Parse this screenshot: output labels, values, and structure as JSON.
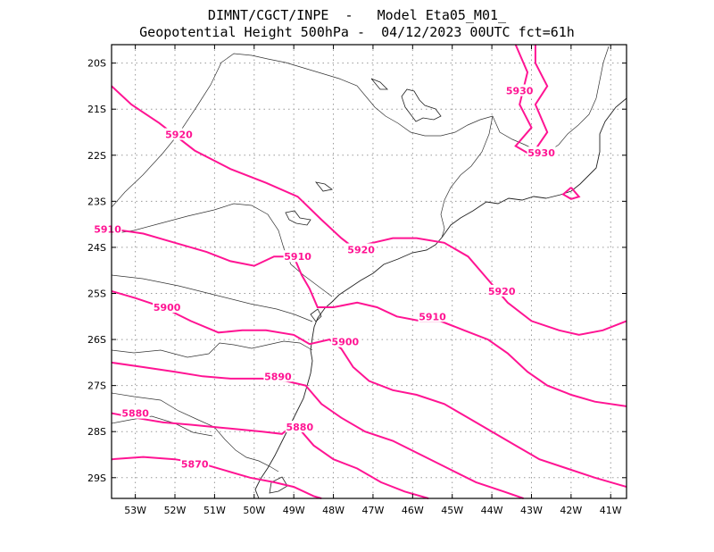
{
  "header": {
    "line1": "DIMNT/CGCT/INPE  -   Model Eta05_M01_",
    "line2": "Geopotential Height 500hPa -  04/12/2023 00UTC fct=61h"
  },
  "colors": {
    "contour": "#ff1493",
    "frame": "#000000",
    "grid": "#999999",
    "coast": "#222222"
  },
  "map": {
    "lon_range": [
      -53.6,
      -40.6
    ],
    "lat_range": [
      -29.45,
      -19.6
    ],
    "x_ticks": [
      "53W",
      "52W",
      "51W",
      "50W",
      "49W",
      "48W",
      "47W",
      "46W",
      "45W",
      "44W",
      "43W",
      "42W",
      "41W"
    ],
    "y_ticks": [
      "20S",
      "21S",
      "22S",
      "23S",
      "24S",
      "25S",
      "26S",
      "27S",
      "28S",
      "29S"
    ],
    "contours": [
      {
        "value": "5930",
        "points": [
          [
            -43.4,
            -19.6
          ],
          [
            -43.1,
            -20.2
          ],
          [
            -43.3,
            -20.9
          ],
          [
            -43.0,
            -21.4
          ],
          [
            -43.4,
            -21.8
          ],
          [
            -43.0,
            -22.0
          ],
          [
            -42.6,
            -21.5
          ],
          [
            -42.9,
            -20.9
          ],
          [
            -42.6,
            -20.5
          ],
          [
            -42.9,
            -20.0
          ],
          [
            -42.9,
            -19.6
          ]
        ],
        "label": [
          -43.3,
          -20.6
        ]
      },
      {
        "value": "5930",
        "points": [
          [
            -42.0,
            -22.7
          ],
          [
            -41.8,
            -22.9
          ],
          [
            -42.0,
            -22.95
          ],
          [
            -42.2,
            -22.85
          ],
          [
            -42.0,
            -22.7
          ]
        ],
        "label": null
      },
      {
        "value": "5930",
        "points": [],
        "label": [
          -42.75,
          -21.95
        ]
      },
      {
        "value": "5920",
        "points": [
          [
            -53.6,
            -20.5
          ],
          [
            -53.1,
            -20.9
          ],
          [
            -52.4,
            -21.3
          ],
          [
            -51.5,
            -21.9
          ],
          [
            -50.6,
            -22.3
          ],
          [
            -49.7,
            -22.6
          ],
          [
            -48.9,
            -22.9
          ],
          [
            -48.3,
            -23.4
          ],
          [
            -47.8,
            -23.8
          ],
          [
            -47.5,
            -24.0
          ],
          [
            -47.0,
            -23.9
          ],
          [
            -46.5,
            -23.8
          ],
          [
            -45.9,
            -23.8
          ],
          [
            -45.2,
            -23.9
          ],
          [
            -44.6,
            -24.2
          ],
          [
            -44.1,
            -24.7
          ],
          [
            -43.6,
            -25.2
          ],
          [
            -43.0,
            -25.6
          ],
          [
            -42.3,
            -25.8
          ],
          [
            -41.8,
            -25.9
          ],
          [
            -41.2,
            -25.8
          ],
          [
            -40.6,
            -25.6
          ]
        ],
        "label": [
          -51.9,
          -21.55
        ]
      },
      {
        "value": "5920",
        "points": [],
        "label": [
          -47.3,
          -24.05
        ]
      },
      {
        "value": "5920",
        "points": [],
        "label": [
          -43.75,
          -24.95
        ]
      },
      {
        "value": "5910",
        "points": [
          [
            -53.6,
            -23.6
          ],
          [
            -52.8,
            -23.7
          ],
          [
            -52.0,
            -23.9
          ],
          [
            -51.2,
            -24.1
          ],
          [
            -50.6,
            -24.3
          ],
          [
            -50.0,
            -24.4
          ],
          [
            -49.5,
            -24.2
          ],
          [
            -49.0,
            -24.2
          ],
          [
            -48.8,
            -24.6
          ],
          [
            -48.6,
            -24.9
          ],
          [
            -48.4,
            -25.3
          ],
          [
            -48.0,
            -25.3
          ],
          [
            -47.4,
            -25.2
          ],
          [
            -46.9,
            -25.3
          ],
          [
            -46.4,
            -25.5
          ],
          [
            -45.8,
            -25.6
          ],
          [
            -45.3,
            -25.6
          ],
          [
            -44.7,
            -25.8
          ],
          [
            -44.1,
            -26.0
          ],
          [
            -43.6,
            -26.3
          ],
          [
            -43.1,
            -26.7
          ],
          [
            -42.6,
            -27.0
          ],
          [
            -42.0,
            -27.2
          ],
          [
            -41.4,
            -27.35
          ],
          [
            -40.6,
            -27.45
          ]
        ],
        "label": [
          -53.7,
          -23.6
        ]
      },
      {
        "value": "5910",
        "points": [],
        "label": [
          -48.9,
          -24.2
        ]
      },
      {
        "value": "5910",
        "points": [],
        "label": [
          -45.5,
          -25.5
        ]
      },
      {
        "value": "5900",
        "points": [
          [
            -53.6,
            -24.95
          ],
          [
            -53.0,
            -25.1
          ],
          [
            -52.3,
            -25.3
          ],
          [
            -51.6,
            -25.6
          ],
          [
            -50.9,
            -25.85
          ],
          [
            -50.3,
            -25.8
          ],
          [
            -49.7,
            -25.8
          ],
          [
            -49.0,
            -25.9
          ],
          [
            -48.6,
            -26.1
          ],
          [
            -48.1,
            -26.0
          ],
          [
            -47.8,
            -26.2
          ],
          [
            -47.5,
            -26.6
          ],
          [
            -47.1,
            -26.9
          ],
          [
            -46.5,
            -27.1
          ],
          [
            -45.9,
            -27.2
          ],
          [
            -45.2,
            -27.4
          ],
          [
            -44.6,
            -27.7
          ],
          [
            -44.0,
            -28.0
          ],
          [
            -43.4,
            -28.3
          ],
          [
            -42.8,
            -28.6
          ],
          [
            -42.1,
            -28.8
          ],
          [
            -41.4,
            -29.0
          ],
          [
            -40.6,
            -29.2
          ]
        ],
        "label": [
          -52.2,
          -25.3
        ]
      },
      {
        "value": "5900",
        "points": [],
        "label": [
          -47.7,
          -26.05
        ]
      },
      {
        "value": "5890",
        "points": [
          [
            -53.6,
            -26.5
          ],
          [
            -52.8,
            -26.6
          ],
          [
            -52.0,
            -26.7
          ],
          [
            -51.3,
            -26.8
          ],
          [
            -50.6,
            -26.85
          ],
          [
            -49.8,
            -26.85
          ],
          [
            -49.2,
            -26.9
          ],
          [
            -48.7,
            -27.0
          ],
          [
            -48.3,
            -27.4
          ],
          [
            -47.8,
            -27.7
          ],
          [
            -47.2,
            -28.0
          ],
          [
            -46.5,
            -28.2
          ],
          [
            -45.8,
            -28.5
          ],
          [
            -45.1,
            -28.8
          ],
          [
            -44.4,
            -29.1
          ],
          [
            -43.7,
            -29.3
          ],
          [
            -43.2,
            -29.45
          ]
        ],
        "label": [
          -49.4,
          -26.8
        ]
      },
      {
        "value": "5880",
        "points": [
          [
            -53.6,
            -27.6
          ],
          [
            -53.0,
            -27.7
          ],
          [
            -52.3,
            -27.8
          ],
          [
            -51.6,
            -27.85
          ],
          [
            -51.0,
            -27.9
          ],
          [
            -50.4,
            -27.95
          ],
          [
            -49.8,
            -28.0
          ],
          [
            -49.3,
            -28.05
          ],
          [
            -49.0,
            -27.85
          ],
          [
            -48.8,
            -28.0
          ],
          [
            -48.5,
            -28.3
          ],
          [
            -48.0,
            -28.6
          ],
          [
            -47.4,
            -28.8
          ],
          [
            -46.8,
            -29.1
          ],
          [
            -46.2,
            -29.3
          ],
          [
            -45.6,
            -29.45
          ]
        ],
        "label": [
          -53.0,
          -27.6
        ]
      },
      {
        "value": "5880",
        "points": [],
        "label": [
          -48.85,
          -27.9
        ]
      },
      {
        "value": "5870",
        "points": [
          [
            -53.6,
            -28.6
          ],
          [
            -52.8,
            -28.55
          ],
          [
            -52.0,
            -28.6
          ],
          [
            -51.3,
            -28.7
          ],
          [
            -50.7,
            -28.85
          ],
          [
            -50.1,
            -29.0
          ],
          [
            -49.5,
            -29.1
          ],
          [
            -49.0,
            -29.2
          ],
          [
            -48.5,
            -29.4
          ],
          [
            -48.3,
            -29.45
          ]
        ],
        "label": [
          -51.5,
          -28.7
        ]
      }
    ]
  }
}
